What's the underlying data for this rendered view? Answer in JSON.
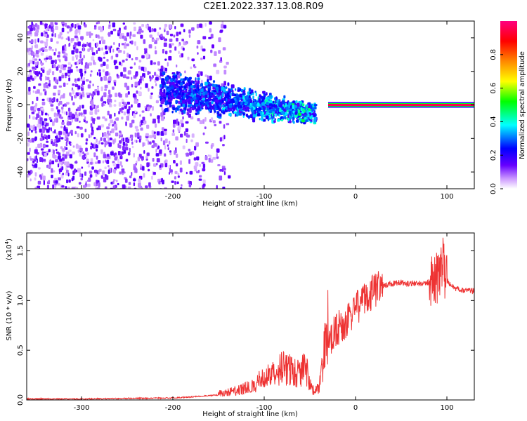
{
  "title": "C2E1.2022.337.13.08.R09",
  "chart_data": [
    {
      "type": "heatmap",
      "xlabel": "Height of straight line (km)",
      "ylabel": "Frequency (Hz)",
      "xlim": [
        -360,
        130
      ],
      "ylim": [
        -50,
        50
      ],
      "x_ticks": [
        -300,
        -200,
        -100,
        0,
        100
      ],
      "y_ticks": [
        -40,
        -20,
        0,
        20,
        40
      ],
      "grid": false,
      "colorbar": {
        "label": "Normalized spectral amplitude",
        "range": [
          0,
          1
        ],
        "ticks": [
          0.0,
          0.2,
          0.4,
          0.6,
          0.8
        ],
        "colors": [
          "#ffffff",
          "#cc99ff",
          "#6600ff",
          "#0000ff",
          "#00ffff",
          "#00ff00",
          "#ffff00",
          "#ff8800",
          "#ff0000",
          "#ff0080"
        ]
      },
      "features": {
        "noise_region_x": [
          -360,
          -140
        ],
        "noise_region_y": [
          -50,
          50
        ],
        "dense_band": {
          "x_start": -215,
          "x_end": -45,
          "y_center_start": 10,
          "y_center_end": -5
        },
        "steady_line": {
          "x": [
            -30,
            130
          ],
          "frequency": 0,
          "peak_amplitude": 0.95
        }
      }
    },
    {
      "type": "line",
      "xlabel": "Height of straight line (km)",
      "ylabel": "SNR (10 * v/v)",
      "y_multiplier": "(x10",
      "y_multiplier_exp": "4",
      "y_multiplier_close": ")",
      "xlim": [
        -360,
        130
      ],
      "ylim": [
        0,
        1.68
      ],
      "x_ticks": [
        -300,
        -200,
        -100,
        0,
        100
      ],
      "y_ticks": [
        0.0,
        0.5,
        1.0,
        1.5
      ],
      "y_tick_labels": [
        "0.0",
        "0.5",
        "1.0",
        "1.5"
      ],
      "color": "#ee3333",
      "series": [
        {
          "x": [
            -360,
            -300,
            -250,
            -200,
            -180,
            -150,
            -130,
            -110,
            -100,
            -90,
            -80,
            -70,
            -60,
            -55,
            -50,
            -45,
            -40,
            -35,
            -30,
            -25,
            -20,
            -15,
            -10,
            -5,
            0,
            10,
            20,
            30,
            40,
            50,
            60,
            70,
            80,
            85,
            90,
            95,
            100,
            110,
            120,
            130
          ],
          "y": [
            0.01,
            0.01,
            0.015,
            0.02,
            0.03,
            0.05,
            0.07,
            0.12,
            0.18,
            0.2,
            0.25,
            0.24,
            0.2,
            0.28,
            0.12,
            0.06,
            0.1,
            0.35,
            0.6,
            0.65,
            0.72,
            0.75,
            0.78,
            0.85,
            0.92,
            1.0,
            1.1,
            1.15,
            1.17,
            1.18,
            1.17,
            1.17,
            1.18,
            1.25,
            1.2,
            1.4,
            1.2,
            1.12,
            1.1,
            1.1
          ]
        }
      ]
    }
  ]
}
